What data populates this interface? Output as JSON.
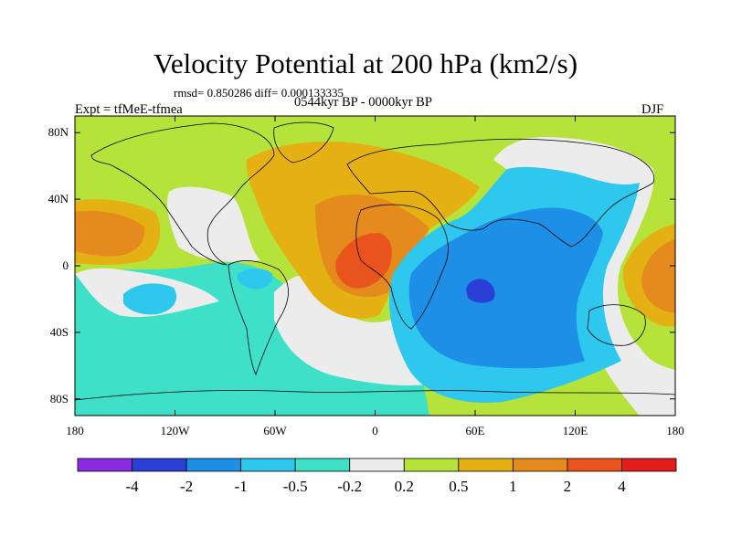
{
  "title": "Velocity Potential at 200 hPa (km2/s)",
  "stats": "rmsd= 0.850286 diff= 0.000133335",
  "experiment": "Expt = tfMeE-tfmea",
  "period": "0544kyr BP - 0000kyr BP",
  "season": "DJF",
  "map": {
    "projection": "cylindrical-equidistant",
    "lon_range": [
      -180,
      180
    ],
    "lat_range": [
      -90,
      90
    ],
    "x_ticks": [
      {
        "lon": -180,
        "label": "180"
      },
      {
        "lon": -120,
        "label": "120W"
      },
      {
        "lon": -60,
        "label": "60W"
      },
      {
        "lon": 0,
        "label": "0"
      },
      {
        "lon": 60,
        "label": "60E"
      },
      {
        "lon": 120,
        "label": "120E"
      },
      {
        "lon": 180,
        "label": "180"
      }
    ],
    "y_ticks": [
      {
        "lat": 80,
        "label": "80N"
      },
      {
        "lat": 40,
        "label": "40N"
      },
      {
        "lat": 0,
        "label": "0"
      },
      {
        "lat": -40,
        "label": "40S"
      },
      {
        "lat": -80,
        "label": "80S"
      }
    ]
  },
  "colorbar": {
    "levels": [
      "-4",
      "-2",
      "-1",
      "-0.5",
      "-0.2",
      "0.2",
      "0.5",
      "1",
      "2",
      "4"
    ],
    "colors": [
      "#8a2be2",
      "#2a3fd6",
      "#1e8fe6",
      "#2ec8ee",
      "#3ee0c8",
      "#ececec",
      "#b5e33a",
      "#e5b012",
      "#e58a1c",
      "#e8541c",
      "#e51c1c"
    ]
  }
}
